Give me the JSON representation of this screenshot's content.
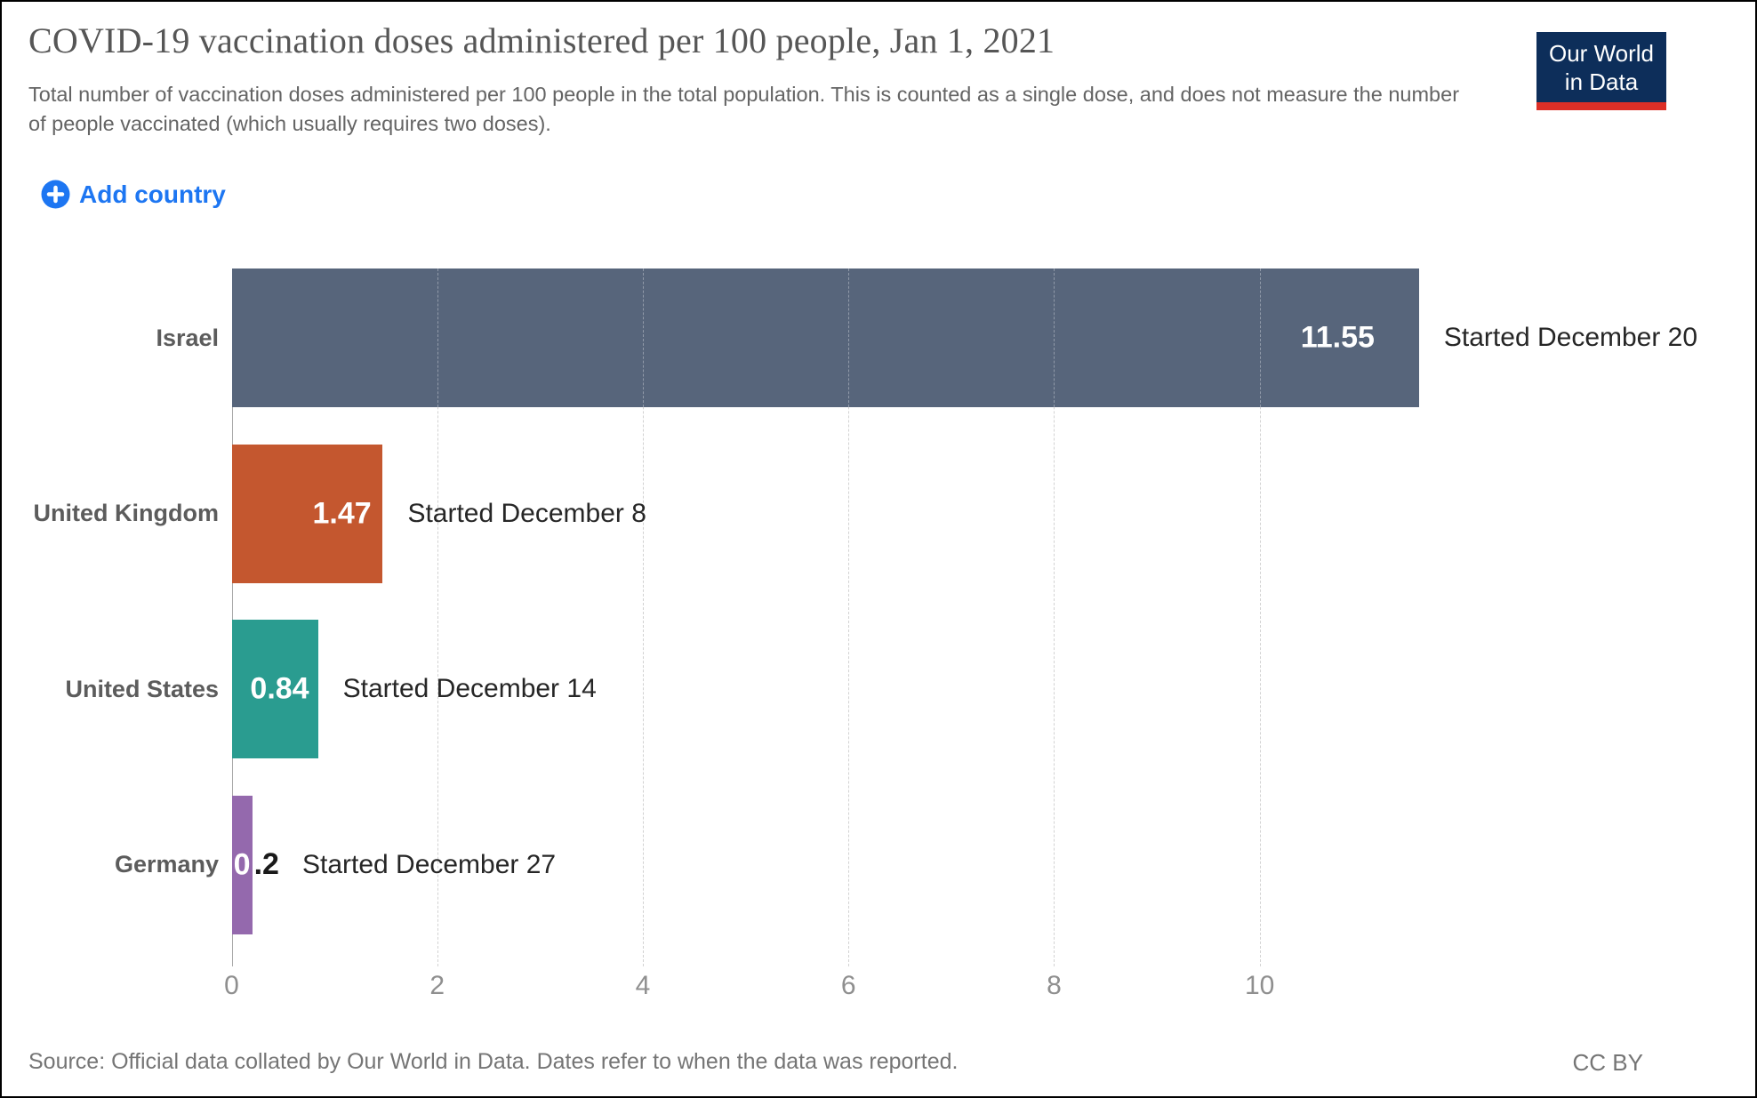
{
  "header": {
    "title": "COVID-19 vaccination doses administered per 100 people, Jan 1, 2021",
    "subtitle": "Total number of vaccination doses administered per 100 people in the total population. This is counted as a single dose, and does not measure the number of people vaccinated (which usually requires two doses).",
    "logo_line1": "Our World",
    "logo_line2": "in Data",
    "logo_bg_color": "#0d2e5a",
    "logo_accent_color": "#dc2f27"
  },
  "controls": {
    "add_country_label": "Add country",
    "accent_color": "#1d76f2"
  },
  "chart_data": {
    "type": "bar",
    "orientation": "horizontal",
    "title": "COVID-19 vaccination doses administered per 100 people, Jan 1, 2021",
    "xlabel": "",
    "ylabel": "",
    "x_ticks": [
      0,
      2,
      4,
      6,
      8,
      10
    ],
    "xlim": [
      0,
      14.6
    ],
    "grid": "vertical-dashed",
    "legend": "none",
    "categories": [
      "Israel",
      "United Kingdom",
      "United States",
      "Germany"
    ],
    "values": [
      11.55,
      1.47,
      0.84,
      0.2
    ],
    "bars": [
      {
        "category": "Israel",
        "value": 11.55,
        "value_label": "11.55",
        "annotation": "Started December 20",
        "color": "#57657b"
      },
      {
        "category": "United Kingdom",
        "value": 1.47,
        "value_label": "1.47",
        "annotation": "Started December 8",
        "color": "#c4572f"
      },
      {
        "category": "United States",
        "value": 0.84,
        "value_label": "0.84",
        "annotation": "Started December 14",
        "color": "#2a9c90"
      },
      {
        "category": "Germany",
        "value": 0.2,
        "value_label": "0.2",
        "value_label_inside_part": "0",
        "value_label_outside_part": ".2",
        "annotation": "Started December 27",
        "color": "#9469ad"
      }
    ]
  },
  "footer": {
    "source": "Source: Official data collated by Our World in Data. Dates refer to when the data was reported.",
    "license": "CC BY"
  }
}
